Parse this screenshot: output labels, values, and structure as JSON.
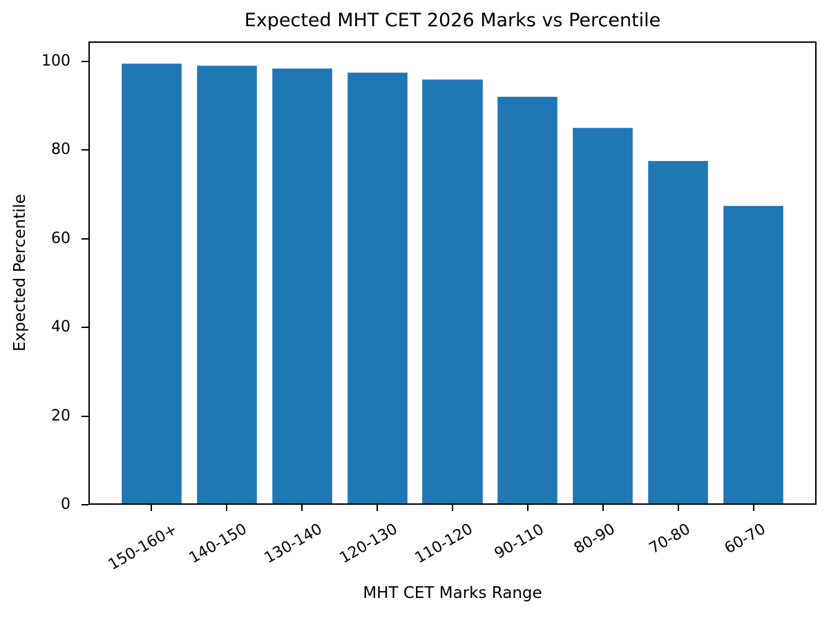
{
  "chart_data": {
    "type": "bar",
    "title": "Expected MHT CET 2026 Marks vs Percentile",
    "xlabel": "MHT CET Marks Range",
    "ylabel": "Expected Percentile",
    "categories": [
      "150-160+",
      "140-150",
      "130-140",
      "120-130",
      "110-120",
      "90-110",
      "80-90",
      "70-80",
      "60-70"
    ],
    "values": [
      99.5,
      99,
      98.5,
      97.5,
      96,
      92,
      85,
      77.5,
      67.5
    ],
    "yticks": [
      0,
      20,
      40,
      60,
      80,
      100
    ],
    "ylim": [
      0,
      104.5
    ],
    "xtick_rotation_deg": 30,
    "bar_color": "#1f77b4",
    "axis_color": "#000000",
    "background_color": "#ffffff",
    "grid": false,
    "legend": null
  }
}
